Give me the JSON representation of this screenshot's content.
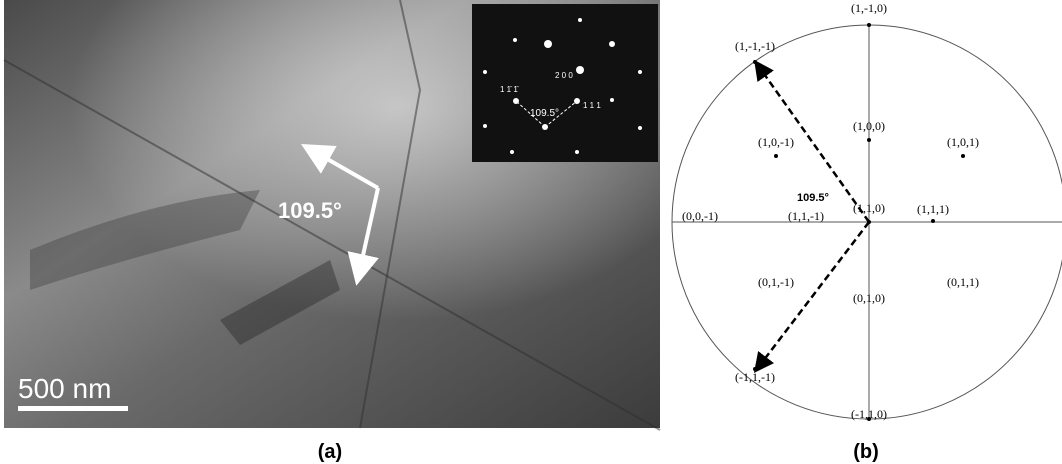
{
  "panel_a": {
    "angle": "109.5°",
    "scale_bar": "500 nm",
    "caption": "(a)",
    "inset": {
      "spot_labels": [
        "1 1̄ 1̄",
        "2 0 0",
        "1 1 1"
      ],
      "angle": "109.5°"
    }
  },
  "panel_b": {
    "caption": "(b)",
    "angle": "109.5°",
    "poles": [
      "(1,-1,0)",
      "(1,-1,-1)",
      "(1,0,0)",
      "(1,0,-1)",
      "(1,0,1)",
      "(0,0,-1)",
      "(1,1,-1)",
      "(1,1,0)",
      "(1,1,1)",
      "(0,1,-1)",
      "(0,1,0)",
      "(0,1,1)",
      "(-1,1,-1)",
      "(-1,1,0)"
    ]
  }
}
